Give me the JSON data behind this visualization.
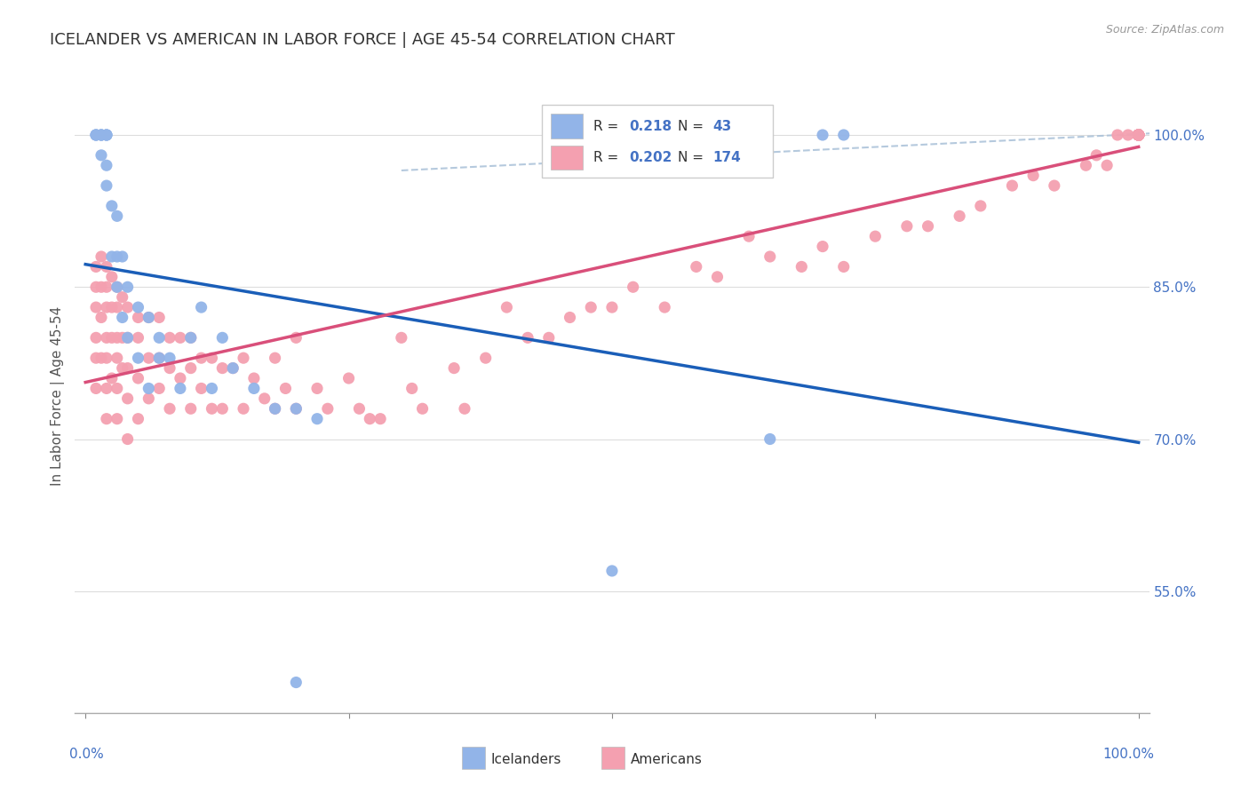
{
  "title": "ICELANDER VS AMERICAN IN LABOR FORCE | AGE 45-54 CORRELATION CHART",
  "source": "Source: ZipAtlas.com",
  "ylabel": "In Labor Force | Age 45-54",
  "yticks": [
    0.55,
    0.7,
    0.85,
    1.0
  ],
  "ytick_labels": [
    "55.0%",
    "70.0%",
    "85.0%",
    "100.0%"
  ],
  "iceland_color": "#92b4e8",
  "american_color": "#f4a0b0",
  "iceland_line_color": "#1a5eb8",
  "american_line_color": "#d94f7a",
  "iceland_R": "0.218",
  "iceland_N": "43",
  "american_R": "0.202",
  "american_N": "174",
  "title_fontsize": 13,
  "tick_fontsize": 11,
  "source_fontsize": 9,
  "background_color": "#ffffff",
  "grid_color": "#dddddd",
  "legend_R_color": "#4472c4",
  "legend_N_color": "#4472c4",
  "tick_color": "#4472c4",
  "ylabel_color": "#555555",
  "iceland_scatter_x": [
    0.01,
    0.01,
    0.01,
    0.015,
    0.015,
    0.015,
    0.015,
    0.02,
    0.02,
    0.02,
    0.02,
    0.02,
    0.025,
    0.025,
    0.03,
    0.03,
    0.03,
    0.035,
    0.035,
    0.04,
    0.04,
    0.05,
    0.05,
    0.06,
    0.06,
    0.07,
    0.07,
    0.08,
    0.09,
    0.1,
    0.11,
    0.12,
    0.13,
    0.14,
    0.16,
    0.18,
    0.2,
    0.22,
    0.5,
    0.65,
    0.7,
    0.72,
    0.2
  ],
  "iceland_scatter_y": [
    1.0,
    1.0,
    1.0,
    1.0,
    1.0,
    1.0,
    0.98,
    1.0,
    1.0,
    1.0,
    0.97,
    0.95,
    0.93,
    0.88,
    0.92,
    0.88,
    0.85,
    0.88,
    0.82,
    0.85,
    0.8,
    0.83,
    0.78,
    0.82,
    0.75,
    0.8,
    0.78,
    0.78,
    0.75,
    0.8,
    0.83,
    0.75,
    0.8,
    0.77,
    0.75,
    0.73,
    0.73,
    0.72,
    0.57,
    0.7,
    1.0,
    1.0,
    0.46
  ],
  "american_scatter_x": [
    0.01,
    0.01,
    0.01,
    0.01,
    0.01,
    0.01,
    0.015,
    0.015,
    0.015,
    0.015,
    0.02,
    0.02,
    0.02,
    0.02,
    0.02,
    0.02,
    0.02,
    0.025,
    0.025,
    0.025,
    0.025,
    0.03,
    0.03,
    0.03,
    0.03,
    0.03,
    0.03,
    0.035,
    0.035,
    0.035,
    0.04,
    0.04,
    0.04,
    0.04,
    0.04,
    0.05,
    0.05,
    0.05,
    0.05,
    0.06,
    0.06,
    0.06,
    0.07,
    0.07,
    0.07,
    0.08,
    0.08,
    0.08,
    0.09,
    0.09,
    0.1,
    0.1,
    0.1,
    0.11,
    0.11,
    0.12,
    0.12,
    0.13,
    0.13,
    0.14,
    0.15,
    0.15,
    0.16,
    0.17,
    0.18,
    0.18,
    0.19,
    0.2,
    0.2,
    0.22,
    0.23,
    0.25,
    0.26,
    0.27,
    0.28,
    0.3,
    0.31,
    0.32,
    0.35,
    0.36,
    0.38,
    0.4,
    0.42,
    0.44,
    0.46,
    0.48,
    0.5,
    0.52,
    0.55,
    0.58,
    0.6,
    0.63,
    0.65,
    0.68,
    0.7,
    0.72,
    0.75,
    0.78,
    0.8,
    0.83,
    0.85,
    0.88,
    0.9,
    0.92,
    0.95,
    0.96,
    0.97,
    0.98,
    0.99,
    1.0,
    1.0,
    1.0,
    1.0,
    1.0,
    1.0,
    1.0,
    1.0,
    1.0,
    1.0,
    1.0,
    1.0,
    1.0,
    1.0,
    1.0,
    1.0,
    1.0,
    1.0,
    1.0,
    1.0,
    1.0,
    1.0,
    1.0,
    1.0,
    1.0,
    1.0,
    1.0,
    1.0,
    1.0,
    1.0,
    1.0,
    1.0,
    1.0,
    1.0,
    1.0,
    1.0,
    1.0,
    1.0,
    1.0,
    1.0,
    1.0,
    1.0,
    1.0,
    1.0,
    1.0,
    1.0,
    1.0,
    1.0,
    1.0,
    1.0,
    1.0,
    1.0,
    1.0,
    1.0,
    1.0,
    1.0,
    1.0,
    1.0,
    1.0,
    1.0,
    1.0,
    1.0,
    1.0,
    1.0,
    1.0
  ],
  "american_scatter_y": [
    0.87,
    0.85,
    0.83,
    0.8,
    0.78,
    0.75,
    0.88,
    0.85,
    0.82,
    0.78,
    0.87,
    0.85,
    0.83,
    0.8,
    0.78,
    0.75,
    0.72,
    0.86,
    0.83,
    0.8,
    0.76,
    0.85,
    0.83,
    0.8,
    0.78,
    0.75,
    0.72,
    0.84,
    0.8,
    0.77,
    0.83,
    0.8,
    0.77,
    0.74,
    0.7,
    0.82,
    0.8,
    0.76,
    0.72,
    0.82,
    0.78,
    0.74,
    0.82,
    0.78,
    0.75,
    0.8,
    0.77,
    0.73,
    0.8,
    0.76,
    0.8,
    0.77,
    0.73,
    0.78,
    0.75,
    0.78,
    0.73,
    0.77,
    0.73,
    0.77,
    0.78,
    0.73,
    0.76,
    0.74,
    0.78,
    0.73,
    0.75,
    0.8,
    0.73,
    0.75,
    0.73,
    0.76,
    0.73,
    0.72,
    0.72,
    0.8,
    0.75,
    0.73,
    0.77,
    0.73,
    0.78,
    0.83,
    0.8,
    0.8,
    0.82,
    0.83,
    0.83,
    0.85,
    0.83,
    0.87,
    0.86,
    0.9,
    0.88,
    0.87,
    0.89,
    0.87,
    0.9,
    0.91,
    0.91,
    0.92,
    0.93,
    0.95,
    0.96,
    0.95,
    0.97,
    0.98,
    0.97,
    1.0,
    1.0,
    1.0,
    1.0,
    1.0,
    1.0,
    1.0,
    1.0,
    1.0,
    1.0,
    1.0,
    1.0,
    1.0,
    1.0,
    1.0,
    1.0,
    1.0,
    1.0,
    1.0,
    1.0,
    1.0,
    1.0,
    1.0,
    1.0,
    1.0,
    1.0,
    1.0,
    1.0,
    1.0,
    1.0,
    1.0,
    1.0,
    1.0,
    1.0,
    1.0,
    1.0,
    1.0,
    1.0,
    1.0,
    1.0,
    1.0,
    1.0,
    1.0,
    1.0,
    1.0,
    1.0,
    1.0,
    1.0,
    1.0,
    1.0,
    1.0,
    1.0,
    1.0,
    1.0,
    1.0,
    1.0,
    1.0,
    1.0,
    1.0,
    1.0,
    1.0,
    1.0,
    1.0,
    1.0,
    1.0,
    1.0,
    1.0
  ]
}
